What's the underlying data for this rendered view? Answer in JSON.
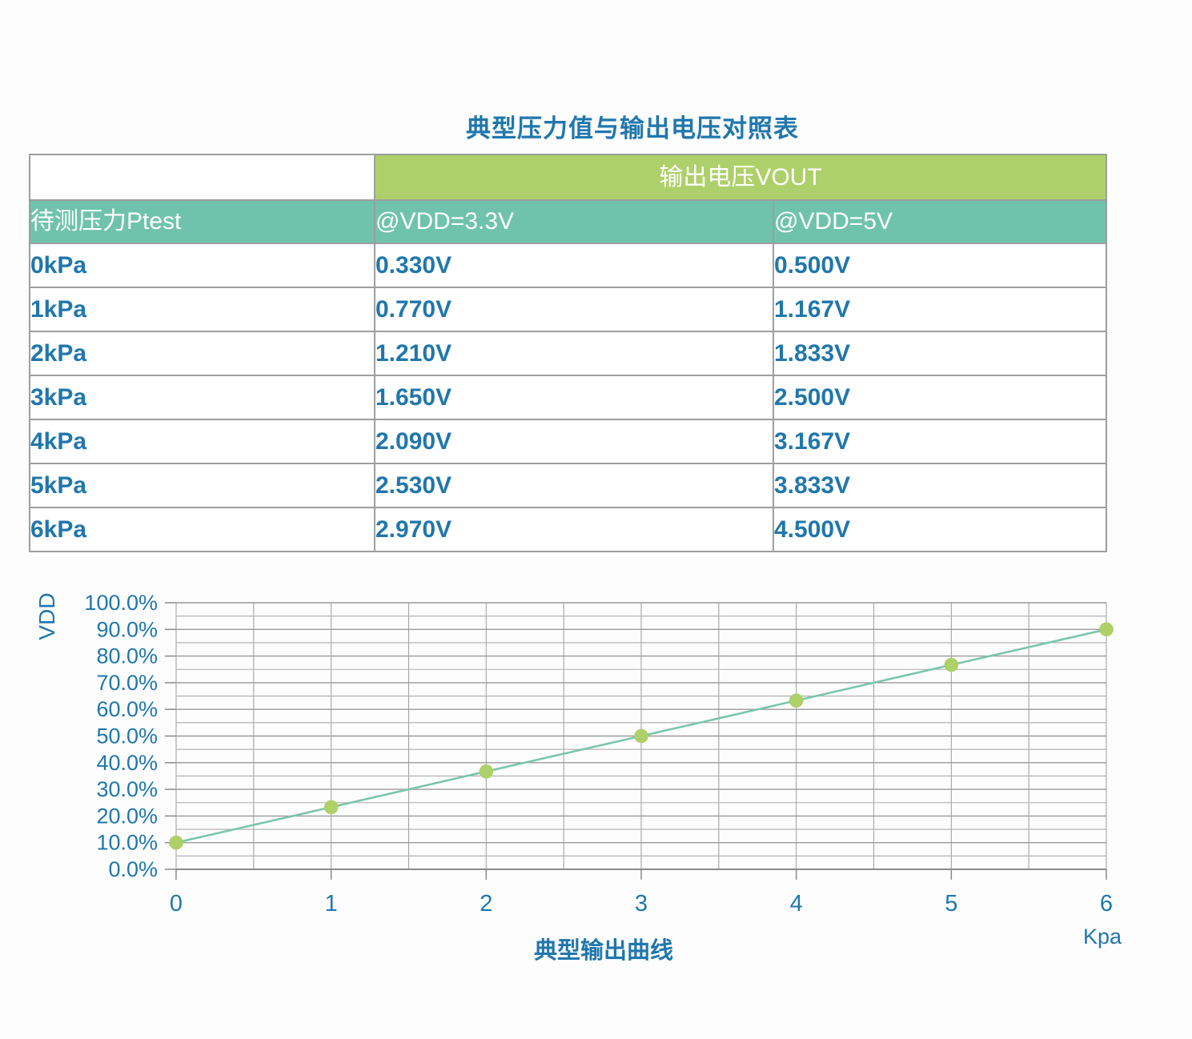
{
  "title": "典型压力值与输出电压对照表",
  "colors": {
    "text_blue": "#2077ac",
    "header_green": "#aed06b",
    "header_teal": "#6fc3ac",
    "grid_gray": "#a3a3a3",
    "axis_gray": "#8a8a8a"
  },
  "table": {
    "vout_header": "输出电压VOUT",
    "col_headers": [
      "待测压力Ptest",
      "@VDD=3.3V",
      "@VDD=5V"
    ],
    "rows": [
      {
        "pressure": "0kPa",
        "vout_3v3": "0.330V",
        "vout_5v": "0.500V"
      },
      {
        "pressure": "1kPa",
        "vout_3v3": "0.770V",
        "vout_5v": "1.167V"
      },
      {
        "pressure": "2kPa",
        "vout_3v3": "1.210V",
        "vout_5v": "1.833V"
      },
      {
        "pressure": "3kPa",
        "vout_3v3": "1.650V",
        "vout_5v": "2.500V"
      },
      {
        "pressure": "4kPa",
        "vout_3v3": "2.090V",
        "vout_5v": "3.167V"
      },
      {
        "pressure": "5kPa",
        "vout_3v3": "2.530V",
        "vout_5v": "3.833V"
      },
      {
        "pressure": "6kPa",
        "vout_3v3": "2.970V",
        "vout_5v": "4.500V"
      }
    ]
  },
  "chart_data": {
    "type": "line",
    "title": "典型输出曲线",
    "xlabel": "Kpa",
    "ylabel": "VDD",
    "x": [
      0,
      1,
      2,
      3,
      4,
      5,
      6
    ],
    "values_pct": [
      10.0,
      23.3,
      36.7,
      50.0,
      63.3,
      76.7,
      90.0
    ],
    "ylim_pct": [
      0,
      100
    ],
    "ytick_step_pct": 10,
    "y_minor_step_pct": 5,
    "x_minor_step": 0.5,
    "ytick_suffix": "%",
    "grid": true,
    "legend": "none",
    "line_color": "#7cc5ab",
    "marker_color": "#aed068"
  }
}
